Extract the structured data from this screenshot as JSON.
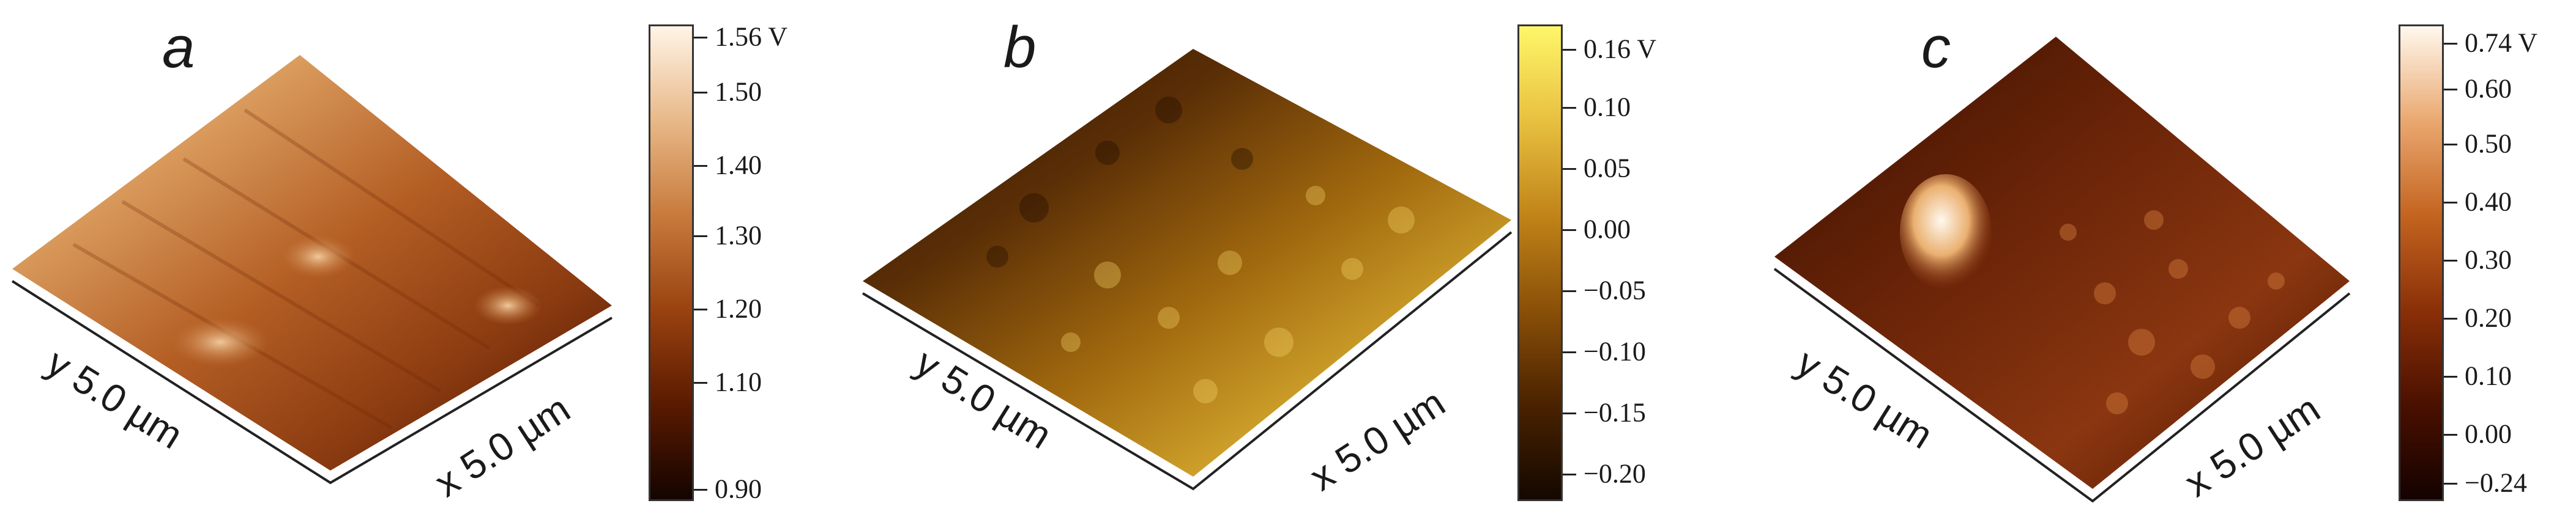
{
  "panels": [
    {
      "letter": "a",
      "y_axis_label": "y 5.0  µm",
      "x_axis_label": "x 5.0  µm",
      "colorbar_ticks": [
        "1.56 V",
        "1.50",
        "1.40",
        "1.30",
        "1.20",
        "1.10",
        "0.90"
      ],
      "colors": [
        "#140400",
        "#5a1a00",
        "#9a4210",
        "#c87a3c",
        "#e8b888",
        "#fff4e6"
      ]
    },
    {
      "letter": "b",
      "y_axis_label": "y 5.0  µm",
      "x_axis_label": "x 5.0  µm",
      "colorbar_ticks": [
        "0.16 V",
        "0.10",
        "0.05",
        "0.00",
        "−0.05",
        "−0.10",
        "−0.15",
        "−0.20"
      ],
      "colors": [
        "#140800",
        "#4a2200",
        "#8a5008",
        "#c08418",
        "#e8c040",
        "#fff66a"
      ]
    },
    {
      "letter": "c",
      "y_axis_label": "y 5.0  µm",
      "x_axis_label": "x 5.0  µm",
      "colorbar_ticks": [
        "0.74 V",
        "0.60",
        "0.50",
        "0.40",
        "0.30",
        "0.20",
        "0.10",
        "0.00",
        "−0.24"
      ],
      "colors": [
        "#140200",
        "#4a1000",
        "#8a3008",
        "#c46420",
        "#eaa870",
        "#fff8ee"
      ]
    }
  ]
}
